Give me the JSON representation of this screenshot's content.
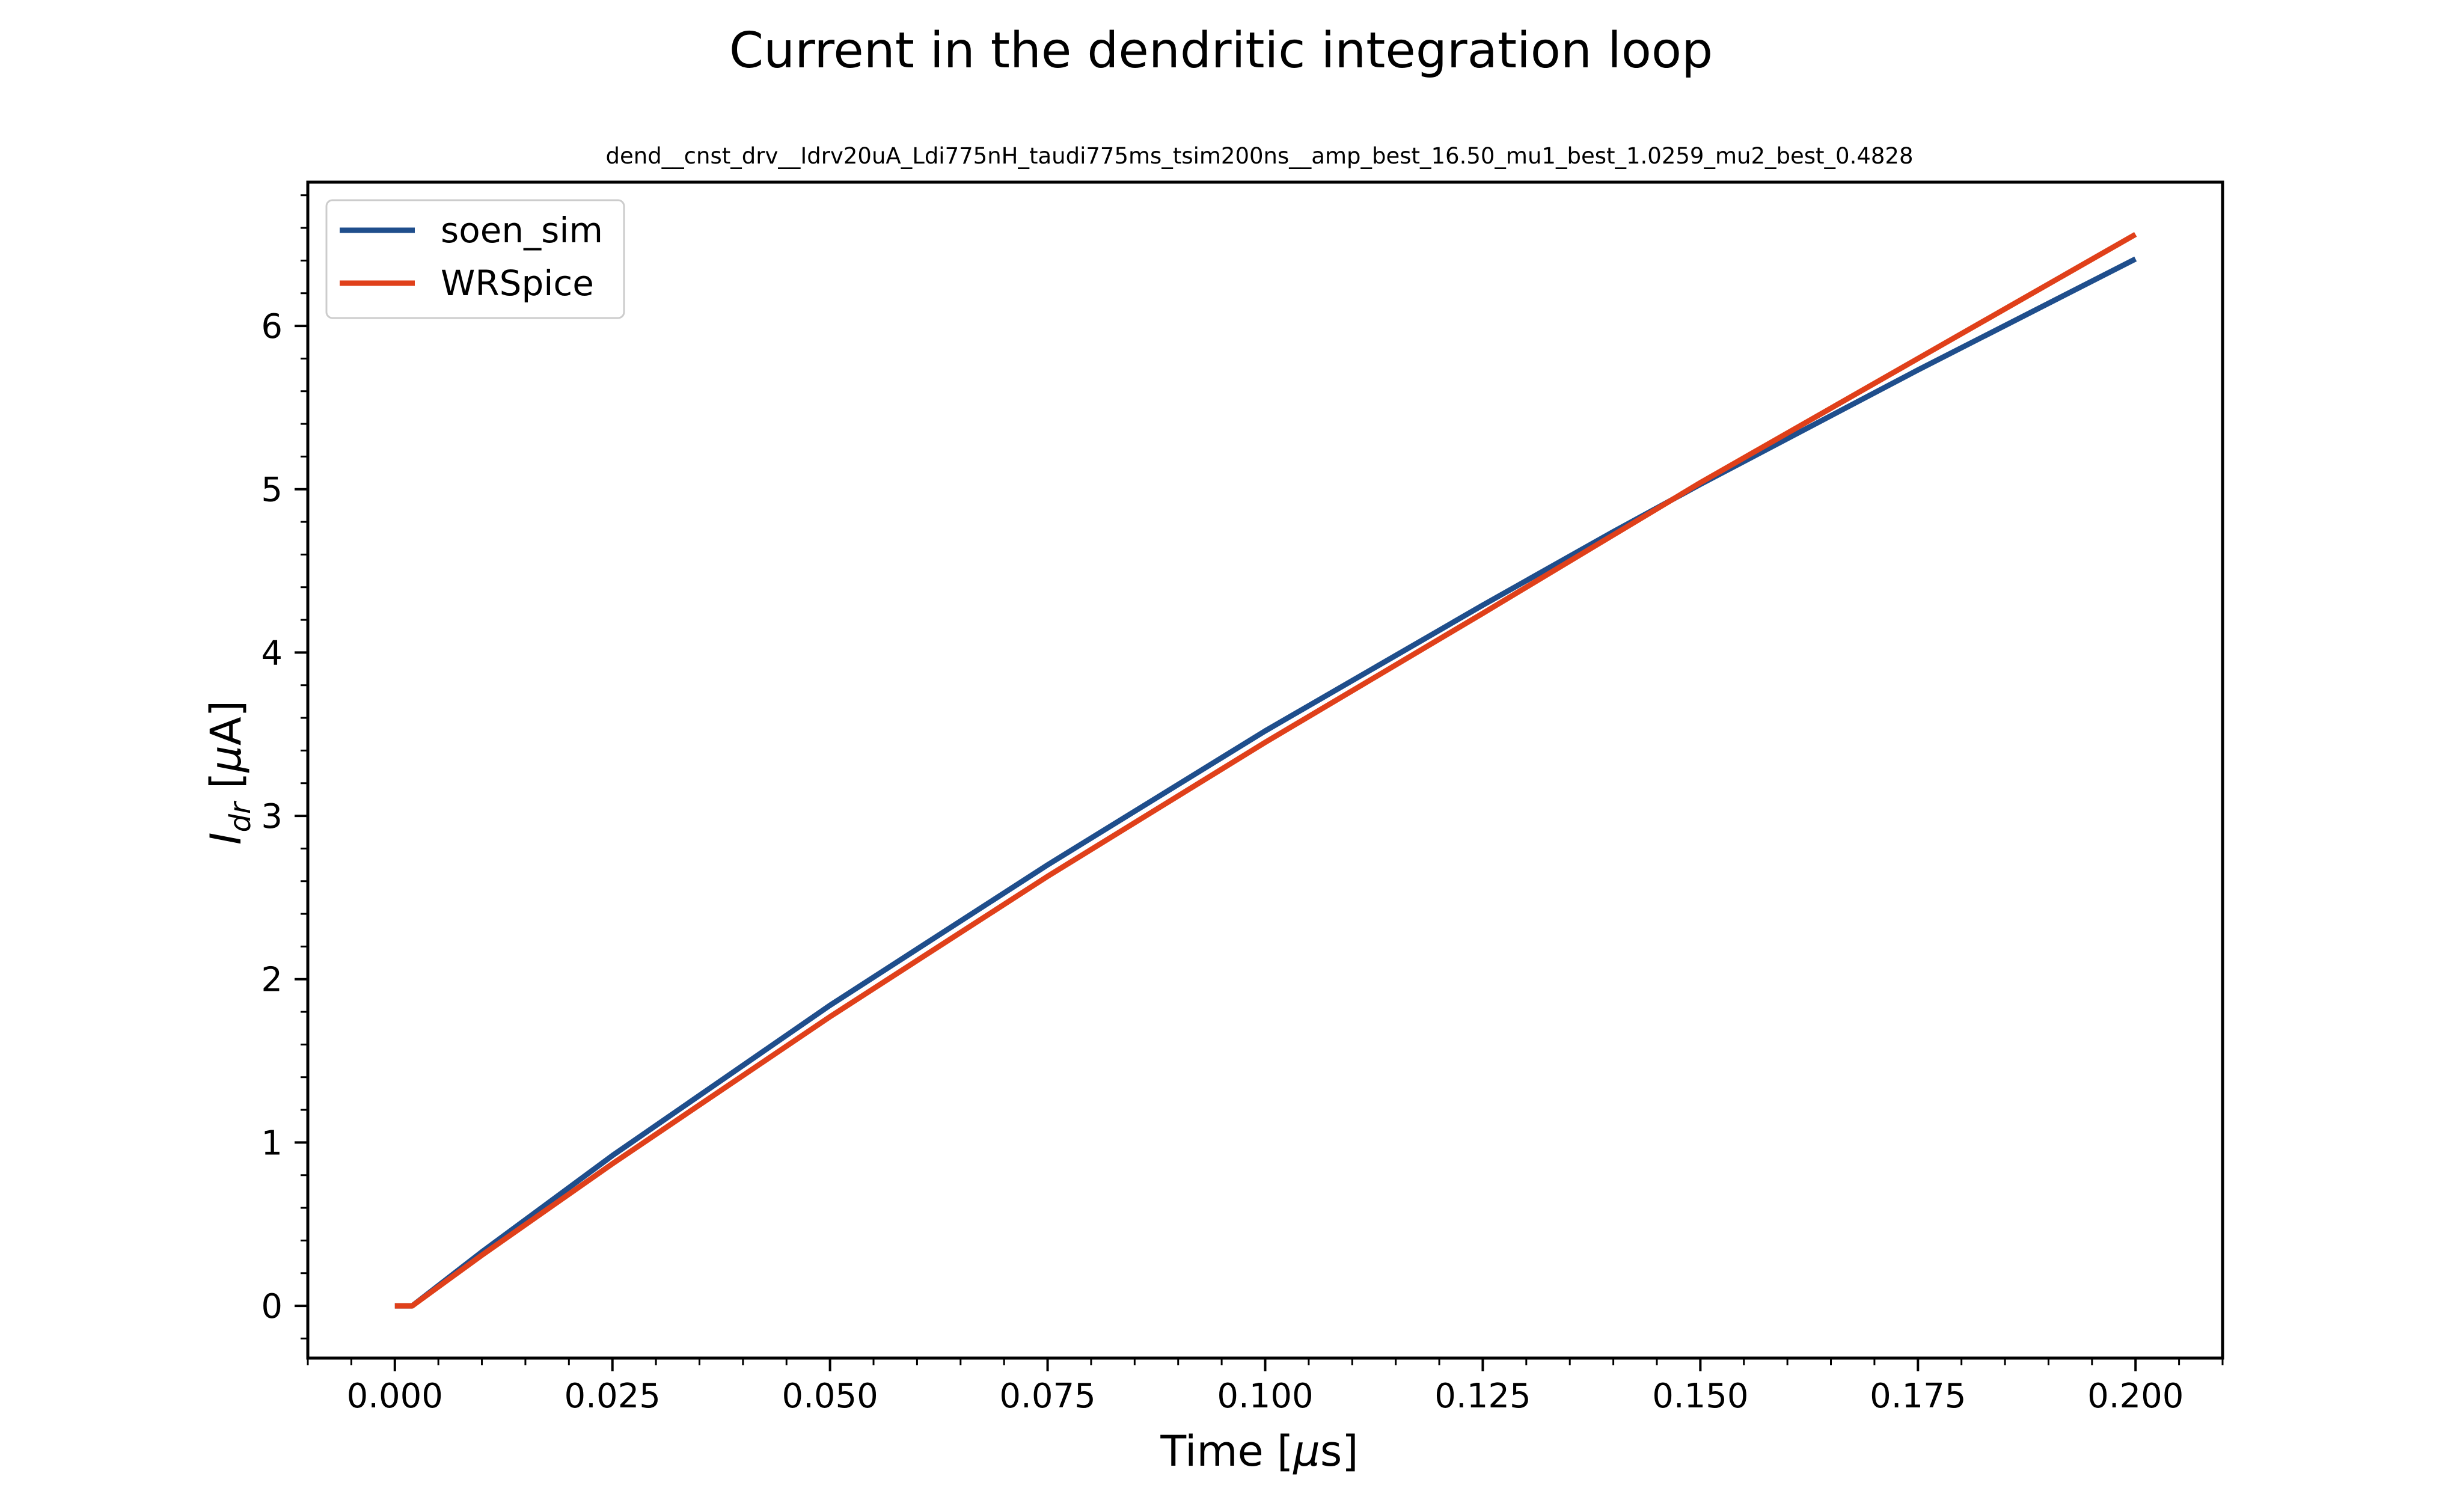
{
  "chart_data": {
    "type": "line",
    "title": "Current in the dendritic integration loop",
    "subtitle": "dend__cnst_drv__Idrv20uA_Ldi775nH_taudi775ms_tsim200ns__amp_best_16.50_mu1_best_1.0259_mu2_best_0.4828",
    "xlabel_main": "Time [",
    "xlabel_unit": "μ",
    "xlabel_tail": "s]",
    "ylabel_main": "I",
    "ylabel_sub": "dr",
    "ylabel_bracket": " [",
    "ylabel_unit": "μ",
    "ylabel_tail": "A]",
    "xlim": [
      -0.01,
      0.21
    ],
    "ylim": [
      -0.32,
      6.88
    ],
    "x_ticks": [
      0.0,
      0.025,
      0.05,
      0.075,
      0.1,
      0.125,
      0.15,
      0.175,
      0.2
    ],
    "x_tick_labels": [
      "0.000",
      "0.025",
      "0.050",
      "0.075",
      "0.100",
      "0.125",
      "0.150",
      "0.175",
      "0.200"
    ],
    "y_ticks": [
      0,
      1,
      2,
      3,
      4,
      5,
      6
    ],
    "y_tick_labels": [
      "0",
      "1",
      "2",
      "3",
      "4",
      "5",
      "6"
    ],
    "grid": false,
    "legend_position": "top-left",
    "series": [
      {
        "name": "soen_sim",
        "color": "#1f4e8c",
        "x": [
          0.0,
          0.002,
          0.01,
          0.025,
          0.05,
          0.075,
          0.1,
          0.125,
          0.14,
          0.15,
          0.175,
          0.2
        ],
        "y": [
          0.0,
          0.0,
          0.33,
          0.92,
          1.84,
          2.7,
          3.52,
          4.29,
          4.74,
          5.03,
          5.73,
          6.41
        ]
      },
      {
        "name": "WRSpice",
        "color": "#e0401a",
        "x": [
          0.0,
          0.002,
          0.01,
          0.025,
          0.05,
          0.075,
          0.1,
          0.125,
          0.14,
          0.15,
          0.175,
          0.2
        ],
        "y": [
          0.0,
          0.0,
          0.31,
          0.87,
          1.77,
          2.63,
          3.45,
          4.24,
          4.72,
          5.04,
          5.8,
          6.56
        ]
      }
    ]
  }
}
